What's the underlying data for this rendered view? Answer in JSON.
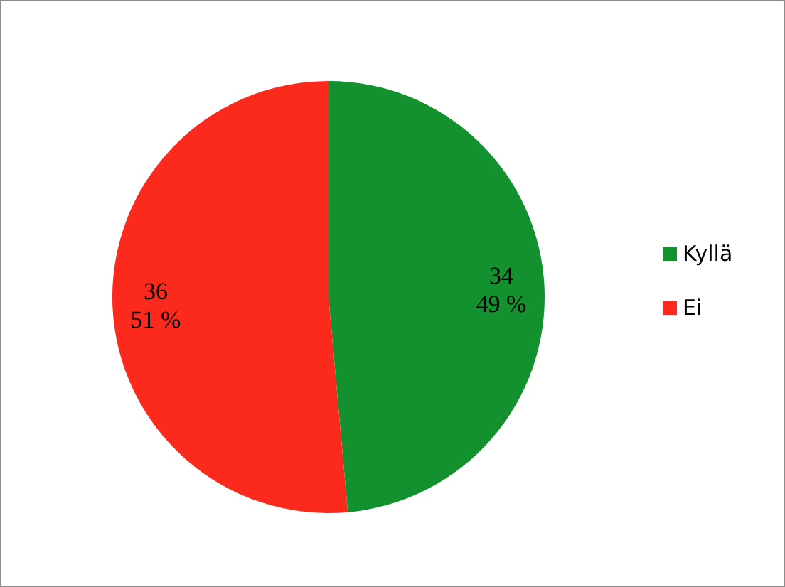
{
  "chart_data": {
    "type": "pie",
    "categories": [
      "Kyllä",
      "Ei"
    ],
    "values": [
      34,
      36
    ],
    "colors": [
      "#14912f",
      "#fb2a1c"
    ],
    "value_labels": [
      "34\n49 %",
      "36\n51 %"
    ],
    "legend": "right"
  }
}
